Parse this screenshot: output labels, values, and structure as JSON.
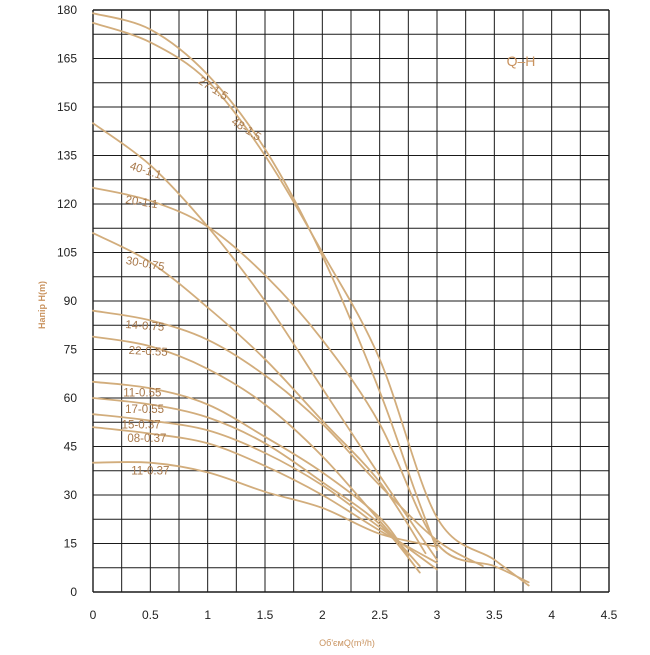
{
  "chart_data": {
    "type": "line",
    "badge": "Q–H",
    "xlabel": "Об'ємQ(m³/h)",
    "ylabel": "Напір H(m)",
    "xlim": [
      0,
      4.5
    ],
    "ylim": [
      0,
      180
    ],
    "x_ticks": [
      "0",
      "0.5",
      "1",
      "1.5",
      "2",
      "2.5",
      "3",
      "3.5",
      "4",
      "4.5"
    ],
    "y_ticks": [
      "0",
      "15",
      "30",
      "45",
      "60",
      "75",
      "90",
      "105",
      "120",
      "135",
      "150",
      "165",
      "180"
    ],
    "grid": true,
    "colors": {
      "curve": "#d2ad7c",
      "label": "#a8784a",
      "grid": "#1a1a1a",
      "axis_text": "#222222",
      "axis_title": "#c9935f"
    },
    "series": [
      {
        "name": "48-1.5",
        "x": [
          0,
          0.5,
          1.0,
          1.5,
          2.0,
          2.5,
          2.8,
          3.0
        ],
        "y": [
          179,
          174,
          160,
          137,
          104,
          62,
          32,
          13
        ]
      },
      {
        "name": "27-1.5",
        "x": [
          0,
          0.5,
          1.0,
          1.5,
          2.0,
          2.5,
          3.0,
          3.5,
          3.8
        ],
        "y": [
          176,
          170,
          158,
          135,
          105,
          72,
          23,
          10,
          2
        ]
      },
      {
        "name": "40-1.1",
        "x": [
          0,
          0.5,
          1.0,
          1.5,
          2.0,
          2.5,
          3.0
        ],
        "y": [
          145,
          132,
          113,
          90,
          63,
          36,
          10
        ]
      },
      {
        "name": "20-1.1",
        "x": [
          0,
          0.5,
          1.0,
          1.5,
          2.0,
          2.5,
          3.0,
          3.5,
          3.8
        ],
        "y": [
          125,
          121,
          113,
          98,
          78,
          52,
          15,
          8,
          3
        ]
      },
      {
        "name": "30-0.75",
        "x": [
          0,
          0.5,
          1.0,
          1.5,
          2.0,
          2.5,
          2.9
        ],
        "y": [
          111,
          102,
          88,
          72,
          53,
          34,
          12
        ]
      },
      {
        "name": "14-0.75",
        "x": [
          0,
          0.5,
          1.0,
          1.5,
          2.0,
          2.5,
          3.0,
          3.4
        ],
        "y": [
          87,
          84,
          78,
          67,
          52,
          33,
          16,
          8
        ]
      },
      {
        "name": "22-0.55",
        "x": [
          0,
          0.5,
          1.0,
          1.5,
          2.0,
          2.5,
          2.85
        ],
        "y": [
          79,
          76,
          69,
          58,
          42,
          22,
          8
        ]
      },
      {
        "name": "11-0.55",
        "x": [
          0,
          0.5,
          1.0,
          1.5,
          2.0,
          2.5,
          2.75
        ],
        "y": [
          65,
          63,
          58,
          48,
          37,
          23,
          11
        ]
      },
      {
        "name": "17-0.55",
        "x": [
          0,
          0.5,
          1.0,
          1.5,
          2.0,
          2.5,
          2.85
        ],
        "y": [
          60,
          58,
          54,
          46,
          34,
          21,
          6
        ]
      },
      {
        "name": "15-0.37",
        "x": [
          0,
          0.5,
          1.0,
          1.5,
          2.0,
          2.5,
          3.0
        ],
        "y": [
          55,
          53,
          50,
          43,
          33,
          20,
          7
        ]
      },
      {
        "name": "08-0.37",
        "x": [
          0,
          0.5,
          1.0,
          1.5,
          2.0,
          2.5,
          3.0
        ],
        "y": [
          51,
          49,
          46,
          39,
          30,
          19,
          9
        ]
      },
      {
        "name": "11-0.37",
        "x": [
          0,
          0.5,
          1.0,
          1.5,
          2.0,
          2.5,
          3.0
        ],
        "y": [
          40,
          40,
          37,
          31,
          26,
          18,
          14
        ]
      }
    ]
  }
}
